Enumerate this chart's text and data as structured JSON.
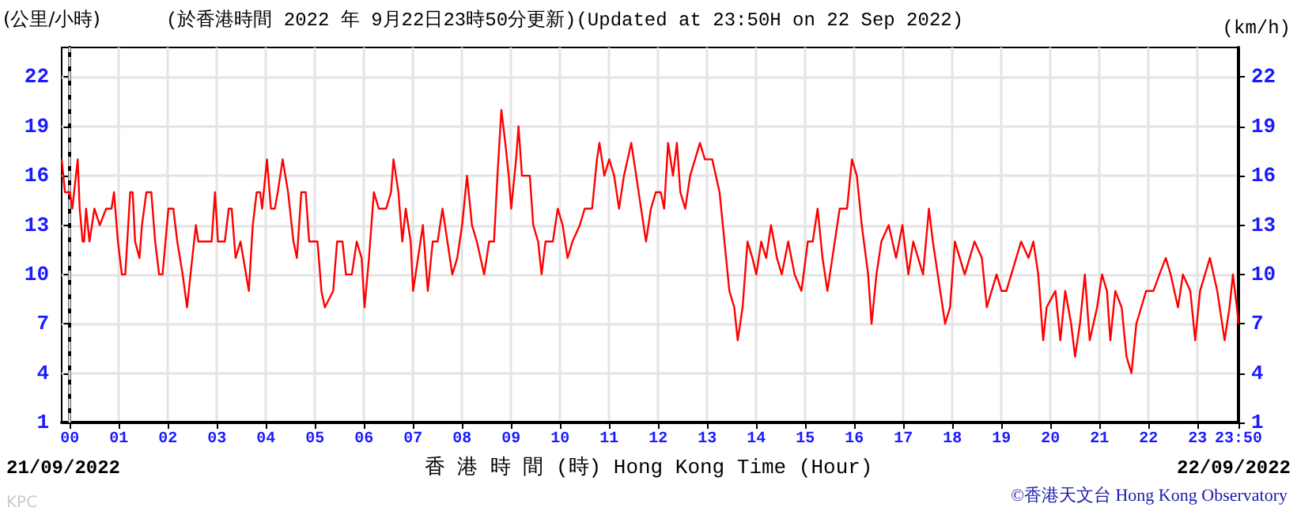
{
  "chart_data": {
    "type": "line",
    "title": "(於香港時間 2022 年 9月22日23時50分更新)(Updated at 23:50H on 22 Sep 2022)",
    "ylabel": "(公里/小時)",
    "y2label": "(km/h)",
    "xlabel": "香 港 時 間 (時) Hong Kong Time (Hour)",
    "annotations": [
      "21/09/2022",
      "22/09/2022",
      "KPC",
      "©香港天文台 Hong Kong Observatory"
    ],
    "xlim": [
      -0.167,
      23.833
    ],
    "xticks": [
      {
        "value": 0,
        "label": "00"
      },
      {
        "value": 1,
        "label": "01"
      },
      {
        "value": 2,
        "label": "02"
      },
      {
        "value": 3,
        "label": "03"
      },
      {
        "value": 4,
        "label": "04"
      },
      {
        "value": 5,
        "label": "05"
      },
      {
        "value": 6,
        "label": "06"
      },
      {
        "value": 7,
        "label": "07"
      },
      {
        "value": 8,
        "label": "08"
      },
      {
        "value": 9,
        "label": "09"
      },
      10,
      11,
      12,
      13,
      14,
      15,
      16,
      17,
      18,
      19,
      20,
      21,
      22,
      23,
      {
        "value": 23.833,
        "label": "23:50"
      }
    ],
    "ylim": [
      1,
      23.8
    ],
    "yticks": [
      1,
      4,
      7,
      10,
      13,
      16,
      19,
      22
    ],
    "y2lim": [
      1,
      23.8
    ],
    "y2ticks": [
      1,
      4,
      7,
      10,
      13,
      16,
      19,
      22
    ],
    "grid": true,
    "marker": "none",
    "line_style": "solid",
    "ref_lines": [
      {
        "axis": "x",
        "value": 0,
        "color": "#d8d8d8",
        "line_style": "dashed"
      }
    ],
    "series": [
      {
        "color": "#ff0000",
        "x": [
          -0.167,
          -0.1,
          0,
          0.05,
          0.16,
          0.2,
          0.26,
          0.29,
          0.33,
          0.4,
          0.5,
          0.61,
          0.74,
          0.85,
          0.9,
          0.98,
          1.06,
          1.13,
          1.23,
          1.28,
          1.33,
          1.42,
          1.47,
          1.56,
          1.66,
          1.74,
          1.82,
          1.89,
          2.01,
          2.11,
          2.19,
          2.3,
          2.39,
          2.46,
          2.57,
          2.62,
          2.78,
          2.89,
          2.96,
          3.02,
          3.16,
          3.24,
          3.3,
          3.38,
          3.48,
          3.65,
          3.73,
          3.81,
          3.88,
          3.92,
          4.02,
          4.1,
          4.18,
          4.24,
          4.34,
          4.45,
          4.56,
          4.63,
          4.72,
          4.81,
          4.88,
          5.05,
          5.13,
          5.2,
          5.37,
          5.45,
          5.56,
          5.63,
          5.75,
          5.85,
          5.95,
          6.01,
          6.1,
          6.2,
          6.3,
          6.45,
          6.55,
          6.6,
          6.7,
          6.78,
          6.85,
          6.95,
          7.0,
          7.1,
          7.2,
          7.3,
          7.4,
          7.5,
          7.6,
          7.7,
          7.8,
          7.9,
          8.0,
          8.1,
          8.2,
          8.3,
          8.45,
          8.55,
          8.65,
          8.72,
          8.8,
          8.88,
          8.95,
          9.0,
          9.1,
          9.15,
          9.22,
          9.3,
          9.38,
          9.45,
          9.55,
          9.62,
          9.7,
          9.85,
          9.95,
          10.05,
          10.15,
          10.25,
          10.4,
          10.5,
          10.65,
          10.75,
          10.8,
          10.9,
          11.0,
          11.1,
          11.2,
          11.3,
          11.45,
          11.55,
          11.65,
          11.75,
          11.85,
          11.95,
          12.05,
          12.12,
          12.2,
          12.3,
          12.38,
          12.45,
          12.55,
          12.65,
          12.75,
          12.85,
          12.95,
          13.1,
          13.25,
          13.35,
          13.45,
          13.55,
          13.62,
          13.72,
          13.82,
          13.92,
          14.0,
          14.1,
          14.2,
          14.3,
          14.42,
          14.52,
          14.65,
          14.78,
          14.92,
          15.05,
          15.15,
          15.25,
          15.35,
          15.45,
          15.6,
          15.7,
          15.85,
          15.95,
          16.05,
          16.15,
          16.28,
          16.35,
          16.45,
          16.55,
          16.7,
          16.85,
          16.98,
          17.1,
          17.2,
          17.3,
          17.4,
          17.52,
          17.6,
          17.7,
          17.85,
          17.95,
          18.05,
          18.15,
          18.25,
          18.35,
          18.45,
          18.6,
          18.7,
          18.8,
          18.9,
          19.0,
          19.1,
          19.2,
          19.3,
          19.4,
          19.55,
          19.65,
          19.75,
          19.85,
          19.92,
          20.1,
          20.2,
          20.3,
          20.42,
          20.5,
          20.6,
          20.7,
          20.8,
          20.95,
          21.05,
          21.15,
          21.22,
          21.32,
          21.45,
          21.55,
          21.65,
          21.75,
          21.85,
          21.95,
          22.1,
          22.22,
          22.35,
          22.45,
          22.6,
          22.7,
          22.85,
          22.95,
          23.05,
          23.15,
          23.25,
          23.4,
          23.55,
          23.65,
          23.72,
          23.8,
          23.833
        ],
        "values": [
          17,
          15,
          15,
          14,
          17,
          14,
          12,
          12,
          14,
          12,
          14,
          13,
          14,
          14,
          15,
          12,
          10,
          10,
          15,
          15,
          12,
          11,
          13,
          15,
          15,
          12,
          10,
          10,
          14,
          14,
          12,
          10,
          8,
          10,
          13,
          12,
          12,
          12,
          15,
          12,
          12,
          14,
          14,
          11,
          12,
          9,
          13,
          15,
          15,
          14,
          17,
          14,
          14,
          15,
          17,
          15,
          12,
          11,
          15,
          15,
          12,
          12,
          9,
          8,
          9,
          12,
          12,
          10,
          10,
          12,
          11,
          8,
          11,
          15,
          14,
          14,
          15,
          17,
          15,
          12,
          14,
          12,
          9,
          11,
          13,
          9,
          12,
          12,
          14,
          12,
          10,
          11,
          13,
          16,
          13,
          12,
          10,
          12,
          12,
          16,
          20,
          18,
          16,
          14,
          17,
          19,
          16,
          16,
          16,
          13,
          12,
          10,
          12,
          12,
          14,
          13,
          11,
          12,
          13,
          14,
          14,
          17,
          18,
          16,
          17,
          16,
          14,
          16,
          18,
          16,
          14,
          12,
          14,
          15,
          15,
          14,
          18,
          16,
          18,
          15,
          14,
          16,
          17,
          18,
          17,
          17,
          15,
          12,
          9,
          8,
          6,
          8,
          12,
          11,
          10,
          12,
          11,
          13,
          11,
          10,
          12,
          10,
          9,
          12,
          12,
          14,
          11,
          9,
          12,
          14,
          14,
          17,
          16,
          13,
          10,
          7,
          10,
          12,
          13,
          11,
          13,
          10,
          12,
          11,
          10,
          14,
          12,
          10,
          7,
          8,
          12,
          11,
          10,
          11,
          12,
          11,
          8,
          9,
          10,
          9,
          9,
          10,
          11,
          12,
          11,
          12,
          10,
          6,
          8,
          9,
          6,
          9,
          7,
          5,
          7,
          10,
          6,
          8,
          10,
          9,
          6,
          9,
          8,
          5,
          4,
          7,
          8,
          9,
          9,
          10,
          11,
          10,
          8,
          10,
          9,
          6,
          9,
          10,
          11,
          9,
          6,
          8,
          10,
          8,
          7
        ]
      }
    ]
  }
}
